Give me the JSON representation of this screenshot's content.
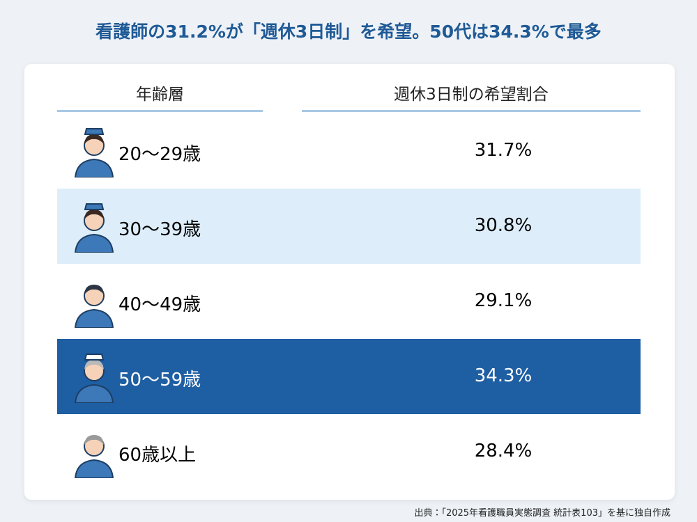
{
  "title": "看護師の31.2%が「週休3日制」を希望。50代は34.3%で最多",
  "table": {
    "headers": [
      "年齢層",
      "週休3日制の希望割合"
    ],
    "rows": [
      [
        "20〜29歳",
        "31.7%"
      ],
      [
        "30〜39歳",
        "30.8%"
      ],
      [
        "40〜49歳",
        "29.1%"
      ],
      [
        "50〜59歳",
        "34.3%"
      ],
      [
        "60歳以上",
        "28.4%"
      ]
    ]
  },
  "source": "出典：「2025年看護職員実態調査 統計表103」を基に独自作成"
}
